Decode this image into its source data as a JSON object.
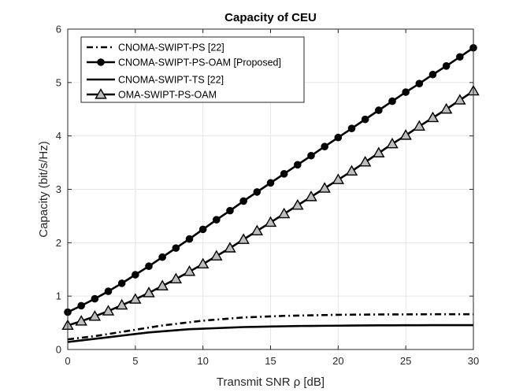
{
  "chart_data": {
    "type": "line",
    "title": "Capacity of CEU",
    "xlabel": "Transmit SNR  ρ [dB]",
    "ylabel": "Capacity (bit/s/Hz)",
    "xlim": [
      0,
      30
    ],
    "ylim": [
      0,
      6
    ],
    "xticks": [
      0,
      5,
      10,
      15,
      20,
      25,
      30
    ],
    "yticks": [
      0,
      1,
      2,
      3,
      4,
      5,
      6
    ],
    "grid": true,
    "legend_position": "top-left",
    "x": [
      0,
      1,
      2,
      3,
      4,
      5,
      6,
      7,
      8,
      9,
      10,
      11,
      12,
      13,
      14,
      15,
      16,
      17,
      18,
      19,
      20,
      21,
      22,
      23,
      24,
      25,
      26,
      27,
      28,
      29,
      30
    ],
    "series": [
      {
        "name": "CNOMA-SWIPT-PS [22]",
        "style": "dashdot",
        "marker": "none",
        "values": [
          0.19,
          0.22,
          0.25,
          0.29,
          0.33,
          0.37,
          0.41,
          0.45,
          0.48,
          0.51,
          0.54,
          0.56,
          0.58,
          0.6,
          0.61,
          0.62,
          0.63,
          0.635,
          0.64,
          0.645,
          0.65,
          0.652,
          0.654,
          0.656,
          0.657,
          0.658,
          0.659,
          0.66,
          0.66,
          0.66,
          0.66
        ]
      },
      {
        "name": "CNOMA-SWIPT-PS-OAM [Proposed]",
        "style": "solid",
        "marker": "circle",
        "values": [
          0.7,
          0.82,
          0.95,
          1.09,
          1.24,
          1.4,
          1.56,
          1.73,
          1.9,
          2.07,
          2.25,
          2.43,
          2.6,
          2.78,
          2.95,
          3.12,
          3.29,
          3.46,
          3.63,
          3.8,
          3.97,
          4.14,
          4.31,
          4.48,
          4.65,
          4.82,
          4.98,
          5.15,
          5.31,
          5.48,
          5.65
        ]
      },
      {
        "name": "CNOMA-SWIPT-TS [22]",
        "style": "solid",
        "marker": "none",
        "values": [
          0.14,
          0.17,
          0.2,
          0.23,
          0.26,
          0.29,
          0.32,
          0.34,
          0.36,
          0.38,
          0.39,
          0.4,
          0.41,
          0.42,
          0.425,
          0.43,
          0.435,
          0.44,
          0.442,
          0.444,
          0.446,
          0.448,
          0.45,
          0.452,
          0.453,
          0.454,
          0.455,
          0.456,
          0.456,
          0.456,
          0.456
        ]
      },
      {
        "name": "OMA-SWIPT-PS-OAM",
        "style": "solid",
        "marker": "triangle",
        "values": [
          0.45,
          0.53,
          0.62,
          0.72,
          0.83,
          0.94,
          1.06,
          1.19,
          1.32,
          1.46,
          1.6,
          1.75,
          1.9,
          2.06,
          2.22,
          2.38,
          2.54,
          2.7,
          2.86,
          3.02,
          3.18,
          3.34,
          3.51,
          3.68,
          3.85,
          4.01,
          4.18,
          4.34,
          4.5,
          4.67,
          4.84
        ]
      }
    ]
  }
}
